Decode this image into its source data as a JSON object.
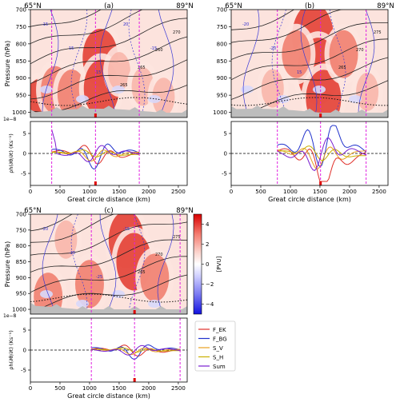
{
  "chart_data": {
    "type": "multi-panel cross-section",
    "panels": [
      {
        "label": "(a)",
        "lat_left": "65°N",
        "lat_right": "89°N",
        "dash_lines_km": [
          360,
          1100,
          1840
        ],
        "red_marker_km": 1100,
        "upper": {
          "ylabel": "Pressure (hPa)",
          "yticks": [
            "700",
            "750",
            "800",
            "850",
            "900",
            "950",
            "1000"
          ],
          "ylim": [
            1015,
            700
          ],
          "pv_blobs": [
            {
              "x_km": 180,
              "p_hpa": 985,
              "level": 3
            },
            {
              "x_km": 420,
              "p_hpa": 935,
              "level": 2
            },
            {
              "x_km": 700,
              "p_hpa": 945,
              "level": 2
            },
            {
              "x_km": 1180,
              "p_hpa": 840,
              "level": 3
            },
            {
              "x_km": 1200,
              "p_hpa": 930,
              "level": 3
            },
            {
              "x_km": 1500,
              "p_hpa": 880,
              "level": 1
            },
            {
              "x_km": 1900,
              "p_hpa": 925,
              "level": 1
            },
            {
              "x_km": 2250,
              "p_hpa": 955,
              "level": 1
            }
          ],
          "theta_labels": [
            "270",
            "260",
            "265",
            "265"
          ],
          "vwind_labels": [
            "-15",
            "15",
            "15",
            "20",
            "-15"
          ]
        },
        "lower": {
          "ylabel": "ρh(∂θ/∂t) (Ks⁻¹)",
          "scale_note": "1e−8",
          "yticks": [
            "5",
            "0",
            "-5"
          ],
          "ylim": [
            -8,
            8
          ]
        }
      },
      {
        "label": "(b)",
        "lat_left": "65°N",
        "lat_right": "89°N",
        "dash_lines_km": [
          780,
          1510,
          2280
        ],
        "red_marker_km": 1510,
        "upper": {
          "ylabel": "",
          "yticks": [
            "700",
            "750",
            "800",
            "850",
            "900",
            "950",
            "1000"
          ],
          "ylim": [
            1015,
            700
          ],
          "pv_blobs": [
            {
              "x_km": 1380,
              "p_hpa": 780,
              "level": 4
            },
            {
              "x_km": 1470,
              "p_hpa": 880,
              "level": 4
            },
            {
              "x_km": 1560,
              "p_hpa": 960,
              "level": 3
            },
            {
              "x_km": 1100,
              "p_hpa": 830,
              "level": 2
            },
            {
              "x_km": 1900,
              "p_hpa": 830,
              "level": 2
            },
            {
              "x_km": 700,
              "p_hpa": 930,
              "level": 1
            },
            {
              "x_km": 2300,
              "p_hpa": 940,
              "level": 1
            }
          ],
          "theta_labels": [
            "275",
            "270",
            "265"
          ],
          "vwind_labels": [
            "-20",
            "-20",
            "15"
          ]
        },
        "lower": {
          "ylabel": "",
          "scale_note": "",
          "yticks": [
            "5",
            "0",
            "-5"
          ],
          "ylim": [
            -8,
            8
          ]
        }
      },
      {
        "label": "(c)",
        "lat_left": "65°N",
        "lat_right": "89°N",
        "dash_lines_km": [
          1030,
          1760,
          2530
        ],
        "red_marker_km": 1760,
        "upper": {
          "ylabel": "Pressure (hPa)",
          "yticks": [
            "700",
            "750",
            "800",
            "850",
            "900",
            "950",
            "1000"
          ],
          "ylim": [
            1015,
            700
          ],
          "pv_blobs": [
            {
              "x_km": 1620,
              "p_hpa": 780,
              "level": 3
            },
            {
              "x_km": 1750,
              "p_hpa": 850,
              "level": 3
            },
            {
              "x_km": 1000,
              "p_hpa": 920,
              "level": 2
            },
            {
              "x_km": 300,
              "p_hpa": 960,
              "level": 2
            },
            {
              "x_km": 2100,
              "p_hpa": 900,
              "level": 2
            },
            {
              "x_km": 600,
              "p_hpa": 780,
              "level": 1
            }
          ],
          "theta_labels": [
            "275",
            "270",
            "265"
          ],
          "vwind_labels": [
            "-20",
            "-15",
            "-25",
            "-15"
          ]
        },
        "lower": {
          "ylabel": "ρh(∂θ/∂t) (Ks⁻¹)",
          "scale_note": "1e−8",
          "yticks": [
            "5",
            "0",
            "-5"
          ],
          "ylim": [
            -8,
            8
          ]
        }
      }
    ],
    "xaxis": {
      "label": "Great circle distance (km)",
      "ticks": [
        "0",
        "500",
        "1000",
        "1500",
        "2000",
        "2500"
      ],
      "xlim": [
        0,
        2650
      ]
    },
    "colorbar": {
      "label": "[PVU]",
      "ticks": [
        "4",
        "2",
        "0",
        "−2",
        "−4"
      ],
      "range": [
        -5,
        5
      ]
    },
    "legend": {
      "position": "right",
      "entries": [
        {
          "label": "F_EK",
          "color": "#e0302a"
        },
        {
          "label": "F_BG",
          "color": "#2233cc"
        },
        {
          "label": "S_V",
          "color": "#e8a020"
        },
        {
          "label": "S_H",
          "color": "#c8b000"
        },
        {
          "label": "Sum",
          "color": "#7a1fd0"
        }
      ]
    }
  }
}
